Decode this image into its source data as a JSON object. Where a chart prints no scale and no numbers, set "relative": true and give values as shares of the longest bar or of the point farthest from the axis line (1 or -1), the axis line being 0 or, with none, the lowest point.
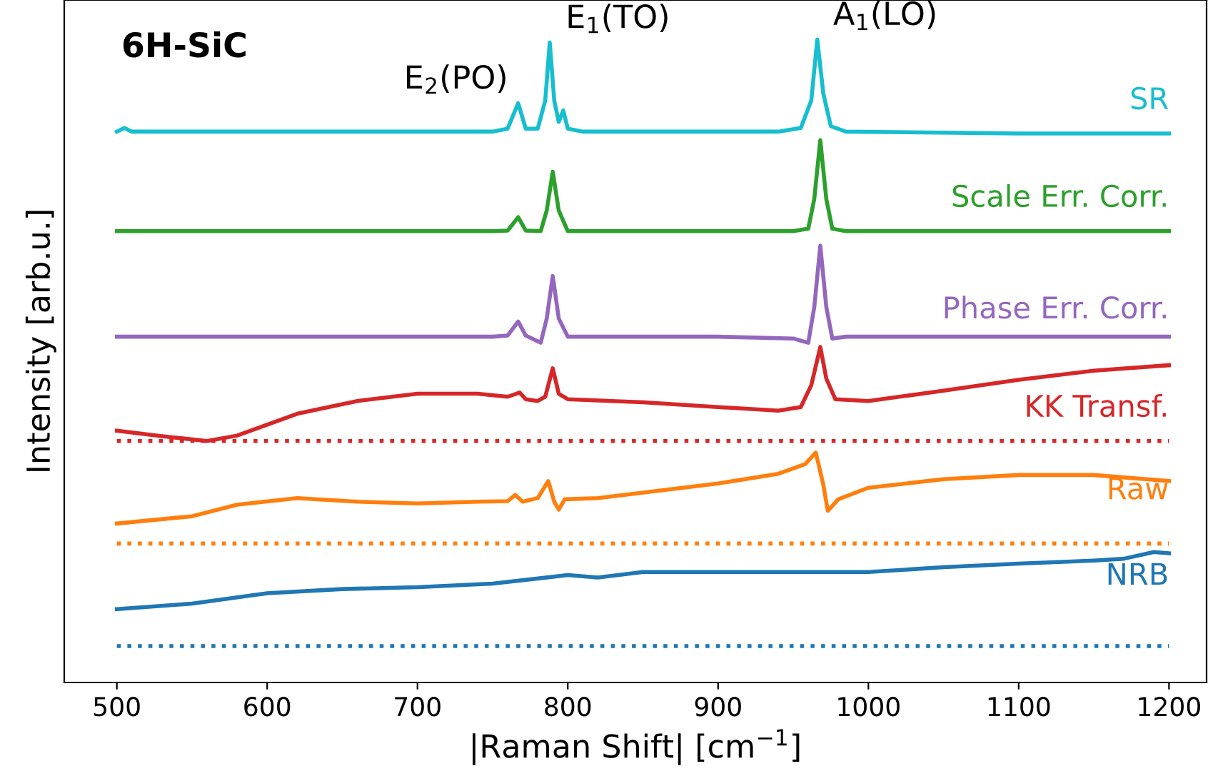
{
  "chart_data": {
    "type": "line",
    "relative": true,
    "xlabel": "|Raman Shift| [cm$^{−1}$]",
    "ylabel": "Intensity [arb.u.]",
    "xlim": [
      465,
      1225
    ],
    "xticks": [
      500,
      600,
      700,
      800,
      900,
      1000,
      1100,
      1200
    ],
    "grid": false,
    "legend": false,
    "tick_labels": "x",
    "line_style": "solid",
    "marker": "none",
    "series": [
      {
        "name": "SR",
        "color": "#17becf",
        "x": [
          500,
          505,
          510,
          600,
          700,
          750,
          760,
          767,
          772,
          780,
          785,
          788,
          791,
          794,
          797,
          800,
          810,
          900,
          940,
          955,
          962,
          966,
          970,
          975,
          985,
          1100,
          1200
        ],
        "values": [
          0.848,
          0.854,
          0.848,
          0.848,
          0.848,
          0.848,
          0.853,
          0.895,
          0.853,
          0.853,
          0.899,
          0.995,
          0.899,
          0.864,
          0.883,
          0.853,
          0.848,
          0.848,
          0.848,
          0.854,
          0.899,
          1.0,
          0.911,
          0.857,
          0.848,
          0.845,
          0.845
        ]
      },
      {
        "name": "Scale Err. Corr.",
        "color": "#2ca02c",
        "x": [
          500,
          600,
          700,
          750,
          760,
          767,
          772,
          782,
          786,
          790,
          794,
          800,
          900,
          950,
          960,
          964,
          968,
          972,
          976,
          985,
          1100,
          1200
        ],
        "values": [
          0.684,
          0.684,
          0.684,
          0.684,
          0.685,
          0.707,
          0.685,
          0.684,
          0.718,
          0.782,
          0.718,
          0.684,
          0.684,
          0.684,
          0.688,
          0.737,
          0.834,
          0.737,
          0.688,
          0.684,
          0.684,
          0.684
        ]
      },
      {
        "name": "Phase Err. Corr.",
        "color": "#9467bd",
        "x": [
          500,
          600,
          700,
          750,
          760,
          767,
          772,
          782,
          786,
          790,
          794,
          800,
          900,
          950,
          960,
          964,
          968,
          972,
          976,
          985,
          1100,
          1200
        ],
        "values": [
          0.51,
          0.51,
          0.51,
          0.51,
          0.512,
          0.535,
          0.512,
          0.5,
          0.54,
          0.61,
          0.54,
          0.51,
          0.51,
          0.507,
          0.5,
          0.559,
          0.66,
          0.559,
          0.507,
          0.51,
          0.51,
          0.51
        ]
      },
      {
        "name": "KK Transf.",
        "color": "#d62728",
        "x": [
          500,
          530,
          560,
          580,
          620,
          660,
          700,
          740,
          760,
          768,
          772,
          780,
          785,
          790,
          794,
          800,
          850,
          900,
          940,
          955,
          962,
          968,
          972,
          978,
          1000,
          1050,
          1100,
          1150,
          1200
        ],
        "values": [
          0.355,
          0.346,
          0.338,
          0.347,
          0.383,
          0.404,
          0.416,
          0.416,
          0.411,
          0.418,
          0.407,
          0.404,
          0.411,
          0.458,
          0.416,
          0.407,
          0.402,
          0.394,
          0.388,
          0.394,
          0.43,
          0.493,
          0.441,
          0.407,
          0.404,
          0.421,
          0.439,
          0.454,
          0.463
        ]
      },
      {
        "name": "Raw",
        "color": "#ff7f0e",
        "x": [
          500,
          550,
          580,
          620,
          660,
          700,
          740,
          760,
          765,
          770,
          780,
          787,
          791,
          794,
          798,
          820,
          900,
          940,
          958,
          965,
          970,
          973,
          980,
          1000,
          1050,
          1100,
          1150,
          1200
        ],
        "values": [
          0.202,
          0.214,
          0.233,
          0.244,
          0.238,
          0.235,
          0.238,
          0.239,
          0.249,
          0.238,
          0.244,
          0.272,
          0.238,
          0.225,
          0.242,
          0.244,
          0.268,
          0.284,
          0.3,
          0.319,
          0.266,
          0.223,
          0.242,
          0.261,
          0.275,
          0.282,
          0.282,
          0.272
        ]
      },
      {
        "name": "NRB",
        "color": "#1f77b4",
        "x": [
          500,
          550,
          600,
          650,
          700,
          750,
          800,
          820,
          850,
          900,
          950,
          1000,
          1050,
          1100,
          1150,
          1170,
          1190,
          1200
        ],
        "values": [
          0.061,
          0.07,
          0.087,
          0.094,
          0.097,
          0.103,
          0.117,
          0.113,
          0.122,
          0.122,
          0.122,
          0.122,
          0.13,
          0.136,
          0.141,
          0.144,
          0.155,
          0.153
        ]
      }
    ],
    "ref_lines": [
      {
        "axis": "y",
        "value": 0.338,
        "color": "#d62728",
        "line_style": "dotted"
      },
      {
        "axis": "y",
        "value": 0.169,
        "color": "#ff7f0e",
        "line_style": "dotted"
      },
      {
        "axis": "y",
        "value": 0.0,
        "color": "#1f77b4",
        "line_style": "dotted"
      }
    ],
    "annotations": [
      {
        "text": "6H-SiC"
      },
      {
        "text": "E$_{2}$(PO)",
        "x": 767,
        "y": 0.895
      },
      {
        "text": "E$_{1}$(TO)",
        "x": 788,
        "y": 0.995
      },
      {
        "text": "A$_{1}$(LO)",
        "x": 966,
        "y": 1.0
      }
    ]
  }
}
